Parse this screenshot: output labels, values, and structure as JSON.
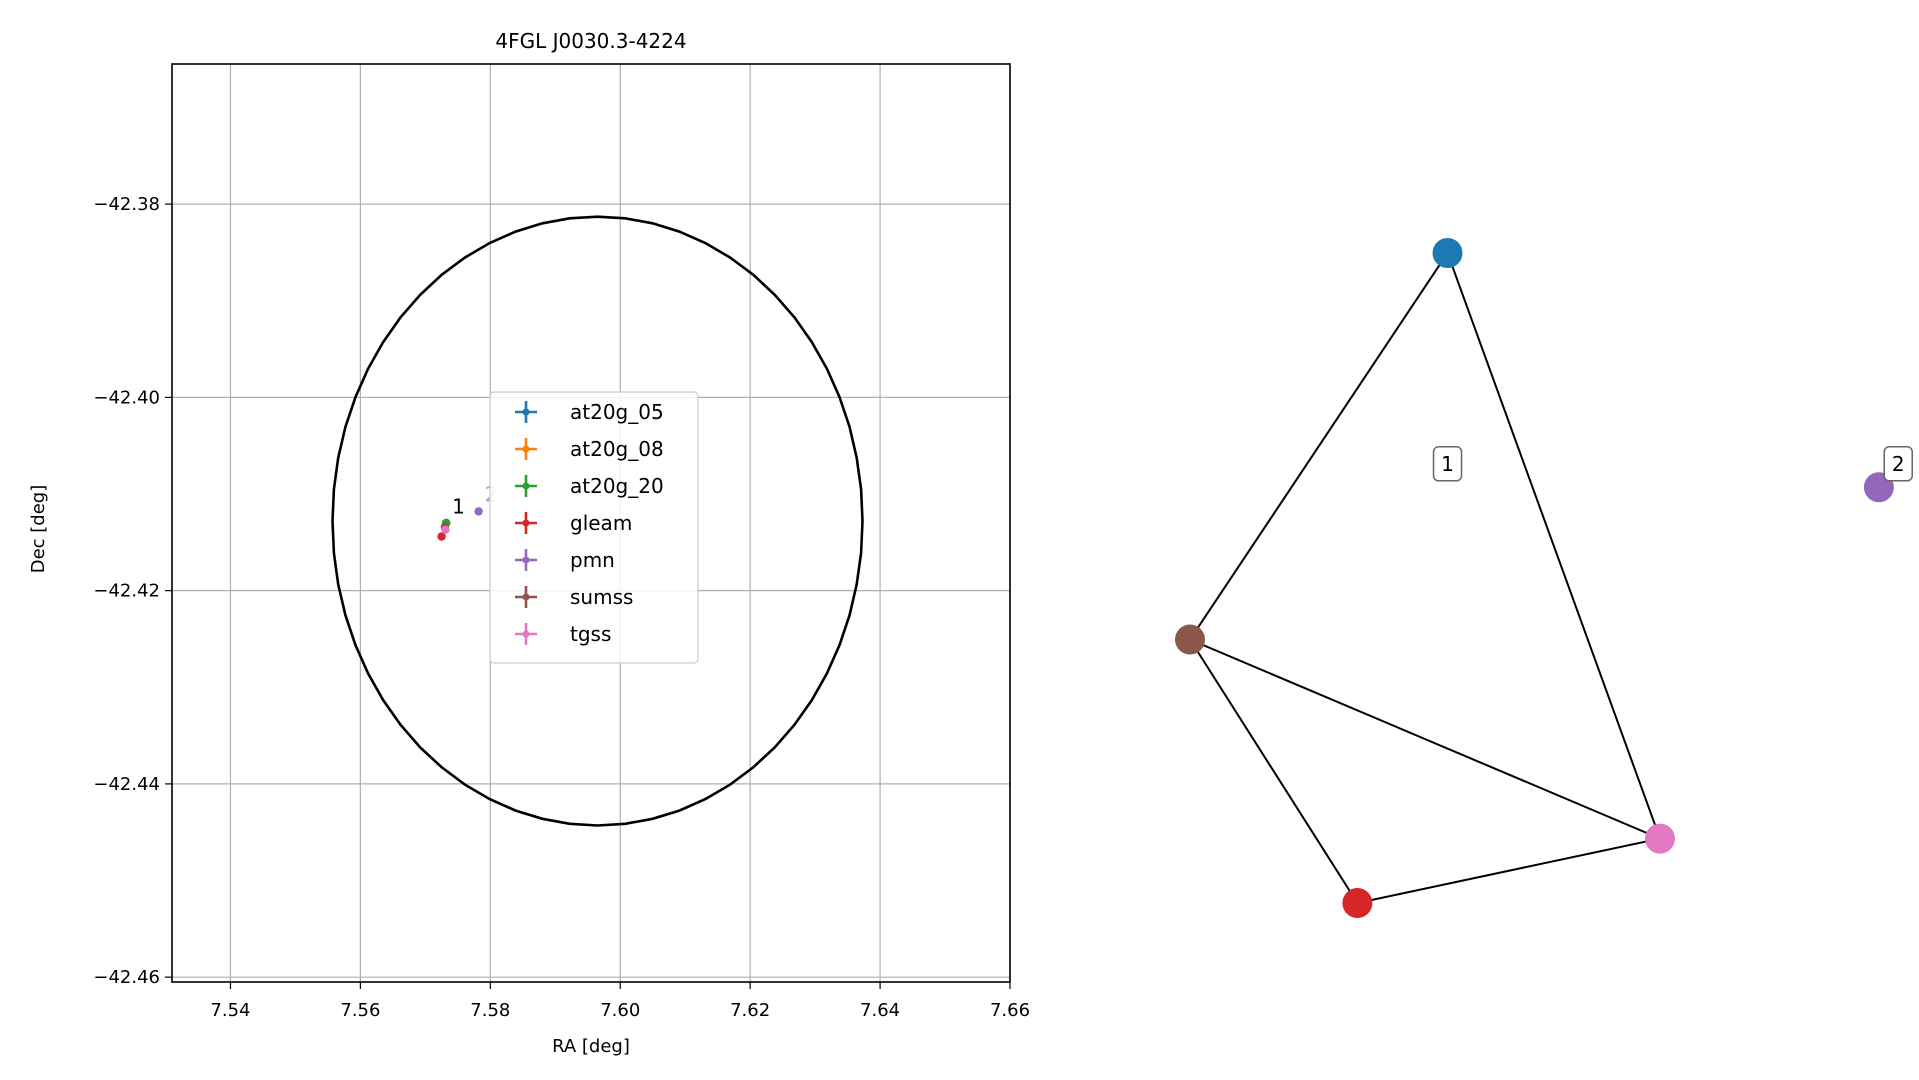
{
  "chart_data": [
    {
      "type": "scatter",
      "title": "4FGL J0030.3-4224",
      "xlabel": "RA [deg]",
      "ylabel": "Dec [deg]",
      "xlim": [
        7.531,
        7.66
      ],
      "ylim": [
        -42.4605,
        -42.3655
      ],
      "x_ticks": [
        7.54,
        7.56,
        7.58,
        7.6,
        7.62,
        7.64,
        7.66
      ],
      "y_ticks": [
        -42.38,
        -42.4,
        -42.42,
        -42.44,
        -42.46
      ],
      "x_tick_labels": [
        "7.54",
        "7.56",
        "7.58",
        "7.60",
        "7.62",
        "7.64",
        "7.66"
      ],
      "y_tick_labels": [
        "−42.38",
        "−42.40",
        "−42.42",
        "−42.44",
        "−42.46"
      ],
      "grid": true,
      "legend_position": "center",
      "ellipse": {
        "center": [
          7.5965,
          -42.4128
        ],
        "semi_axis_ra": 0.0408,
        "semi_axis_dec": 0.0315,
        "color": "#000000"
      },
      "series": [
        {
          "name": "at20g_05",
          "color": "#1f77b4",
          "points": [
            [
              7.5732,
              -42.413
            ]
          ]
        },
        {
          "name": "at20g_08",
          "color": "#ff7f0e",
          "points": [
            [
              7.5732,
              -42.413
            ]
          ]
        },
        {
          "name": "at20g_20",
          "color": "#2ca02c",
          "points": [
            [
              7.5732,
              -42.413
            ]
          ]
        },
        {
          "name": "gleam",
          "color": "#d62728",
          "points": [
            [
              7.5725,
              -42.4144
            ]
          ]
        },
        {
          "name": "pmn",
          "color": "#9467bd",
          "points": [
            [
              7.5782,
              -42.4118
            ]
          ]
        },
        {
          "name": "sumss",
          "color": "#8c564b",
          "points": [
            [
              7.573,
              -42.4134
            ]
          ]
        },
        {
          "name": "tgss",
          "color": "#e377c2",
          "points": [
            [
              7.5731,
              -42.4137
            ]
          ]
        }
      ],
      "cluster_labels": [
        {
          "text": "1",
          "x": 7.5735,
          "y": -42.412,
          "color": "#000000"
        },
        {
          "text": "2",
          "x": 7.5785,
          "y": -42.4108,
          "color": "#aaaaaa"
        }
      ]
    },
    {
      "type": "network",
      "nodes": [
        {
          "id": "at20g",
          "color": "#1f77b4",
          "x": 0.4,
          "y": 0.86
        },
        {
          "id": "sumss",
          "color": "#8c564b",
          "x": 0.0,
          "y": 0.2
        },
        {
          "id": "tgss",
          "color": "#e377c2",
          "x": 0.73,
          "y": -0.14
        },
        {
          "id": "gleam",
          "color": "#d62728",
          "x": 0.26,
          "y": -0.25
        },
        {
          "id": "pmn",
          "color": "#9467bd",
          "x": 1.07,
          "y": 0.46
        }
      ],
      "edges": [
        [
          "at20g",
          "sumss"
        ],
        [
          "at20g",
          "tgss"
        ],
        [
          "sumss",
          "tgss"
        ],
        [
          "sumss",
          "gleam"
        ],
        [
          "gleam",
          "tgss"
        ]
      ],
      "cluster_labels": [
        {
          "text": "1",
          "x": 0.4,
          "y": 0.5
        },
        {
          "text": "2",
          "x": 1.1,
          "y": 0.5
        }
      ]
    }
  ]
}
